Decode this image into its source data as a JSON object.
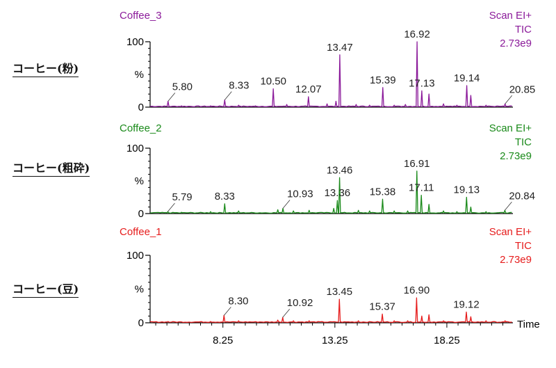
{
  "side_labels": [
    "コーヒー(粉)",
    "コーヒー(粗砕)",
    "コーヒー(豆)"
  ],
  "chart_data": {
    "type": "line",
    "xlabel": "Time",
    "xlim": [
      5.0,
      21.2
    ],
    "x_ticks": [
      "8.25",
      "13.25",
      "18.25"
    ],
    "y_ticks": [
      "0",
      "%",
      "100"
    ],
    "ylim": [
      0,
      100
    ],
    "panels": [
      {
        "name": "Coffee_3",
        "scan_label": "Scan EI+",
        "tic_label": "TIC",
        "intensity_label": "2.73e9",
        "color": "#8b1a9a",
        "peaks": [
          {
            "x": 5.8,
            "y": 9,
            "label": "5.80"
          },
          {
            "x": 6.4,
            "y": 2
          },
          {
            "x": 7.7,
            "y": 2
          },
          {
            "x": 8.33,
            "y": 11,
            "label": "8.33"
          },
          {
            "x": 8.95,
            "y": 3
          },
          {
            "x": 9.7,
            "y": 2
          },
          {
            "x": 10.5,
            "y": 28,
            "label": "10.50"
          },
          {
            "x": 11.1,
            "y": 4
          },
          {
            "x": 12.07,
            "y": 16,
            "label": "12.07"
          },
          {
            "x": 12.9,
            "y": 5
          },
          {
            "x": 13.3,
            "y": 9
          },
          {
            "x": 13.47,
            "y": 80,
            "label": "13.47"
          },
          {
            "x": 14.2,
            "y": 4
          },
          {
            "x": 14.8,
            "y": 3
          },
          {
            "x": 15.39,
            "y": 30,
            "label": "15.39"
          },
          {
            "x": 15.9,
            "y": 3
          },
          {
            "x": 16.4,
            "y": 4
          },
          {
            "x": 16.92,
            "y": 100,
            "label": "16.92"
          },
          {
            "x": 17.13,
            "y": 25,
            "label": "17.13"
          },
          {
            "x": 17.45,
            "y": 20
          },
          {
            "x": 18.1,
            "y": 5
          },
          {
            "x": 18.7,
            "y": 3
          },
          {
            "x": 19.14,
            "y": 33,
            "label": "19.14"
          },
          {
            "x": 19.32,
            "y": 18
          },
          {
            "x": 20.0,
            "y": 3
          },
          {
            "x": 20.85,
            "y": 5,
            "label": "20.85"
          }
        ]
      },
      {
        "name": "Coffee_2",
        "scan_label": "Scan EI+",
        "tic_label": "TIC",
        "intensity_label": "2.73e9",
        "color": "#1a8a1a",
        "peaks": [
          {
            "x": 5.79,
            "y": 3,
            "label": "5.79"
          },
          {
            "x": 6.4,
            "y": 2
          },
          {
            "x": 7.7,
            "y": 3
          },
          {
            "x": 8.33,
            "y": 15,
            "label": "8.33"
          },
          {
            "x": 8.95,
            "y": 4
          },
          {
            "x": 10.7,
            "y": 6
          },
          {
            "x": 10.93,
            "y": 8,
            "label": "10.93"
          },
          {
            "x": 11.4,
            "y": 4
          },
          {
            "x": 12.1,
            "y": 5
          },
          {
            "x": 13.2,
            "y": 8
          },
          {
            "x": 13.36,
            "y": 20,
            "label": "13.36"
          },
          {
            "x": 13.46,
            "y": 55,
            "label": "13.46"
          },
          {
            "x": 14.3,
            "y": 5
          },
          {
            "x": 14.8,
            "y": 4
          },
          {
            "x": 15.38,
            "y": 22,
            "label": "15.38"
          },
          {
            "x": 15.9,
            "y": 4
          },
          {
            "x": 16.5,
            "y": 4
          },
          {
            "x": 16.91,
            "y": 65,
            "label": "16.91"
          },
          {
            "x": 17.11,
            "y": 28,
            "label": "17.11"
          },
          {
            "x": 17.45,
            "y": 14
          },
          {
            "x": 18.1,
            "y": 4
          },
          {
            "x": 18.7,
            "y": 3
          },
          {
            "x": 19.13,
            "y": 25,
            "label": "19.13"
          },
          {
            "x": 19.32,
            "y": 10
          },
          {
            "x": 20.0,
            "y": 3
          },
          {
            "x": 20.84,
            "y": 5,
            "label": "20.84"
          }
        ]
      },
      {
        "name": "Coffee_1",
        "scan_label": "Scan EI+",
        "tic_label": "TIC",
        "intensity_label": "2.73e9",
        "color": "#e61c1c",
        "peaks": [
          {
            "x": 5.8,
            "y": 2
          },
          {
            "x": 7.7,
            "y": 2
          },
          {
            "x": 8.3,
            "y": 11,
            "label": "8.30"
          },
          {
            "x": 8.95,
            "y": 3
          },
          {
            "x": 10.7,
            "y": 4
          },
          {
            "x": 10.92,
            "y": 8,
            "label": "10.92"
          },
          {
            "x": 11.4,
            "y": 3
          },
          {
            "x": 12.1,
            "y": 3
          },
          {
            "x": 13.45,
            "y": 35,
            "label": "13.45"
          },
          {
            "x": 14.3,
            "y": 3
          },
          {
            "x": 15.37,
            "y": 13,
            "label": "15.37"
          },
          {
            "x": 15.9,
            "y": 3
          },
          {
            "x": 16.5,
            "y": 3
          },
          {
            "x": 16.9,
            "y": 37,
            "label": "16.90"
          },
          {
            "x": 17.13,
            "y": 10
          },
          {
            "x": 17.45,
            "y": 12
          },
          {
            "x": 18.1,
            "y": 3
          },
          {
            "x": 19.12,
            "y": 16,
            "label": "19.12"
          },
          {
            "x": 19.32,
            "y": 9
          },
          {
            "x": 20.0,
            "y": 3
          },
          {
            "x": 20.85,
            "y": 3
          }
        ]
      }
    ]
  }
}
